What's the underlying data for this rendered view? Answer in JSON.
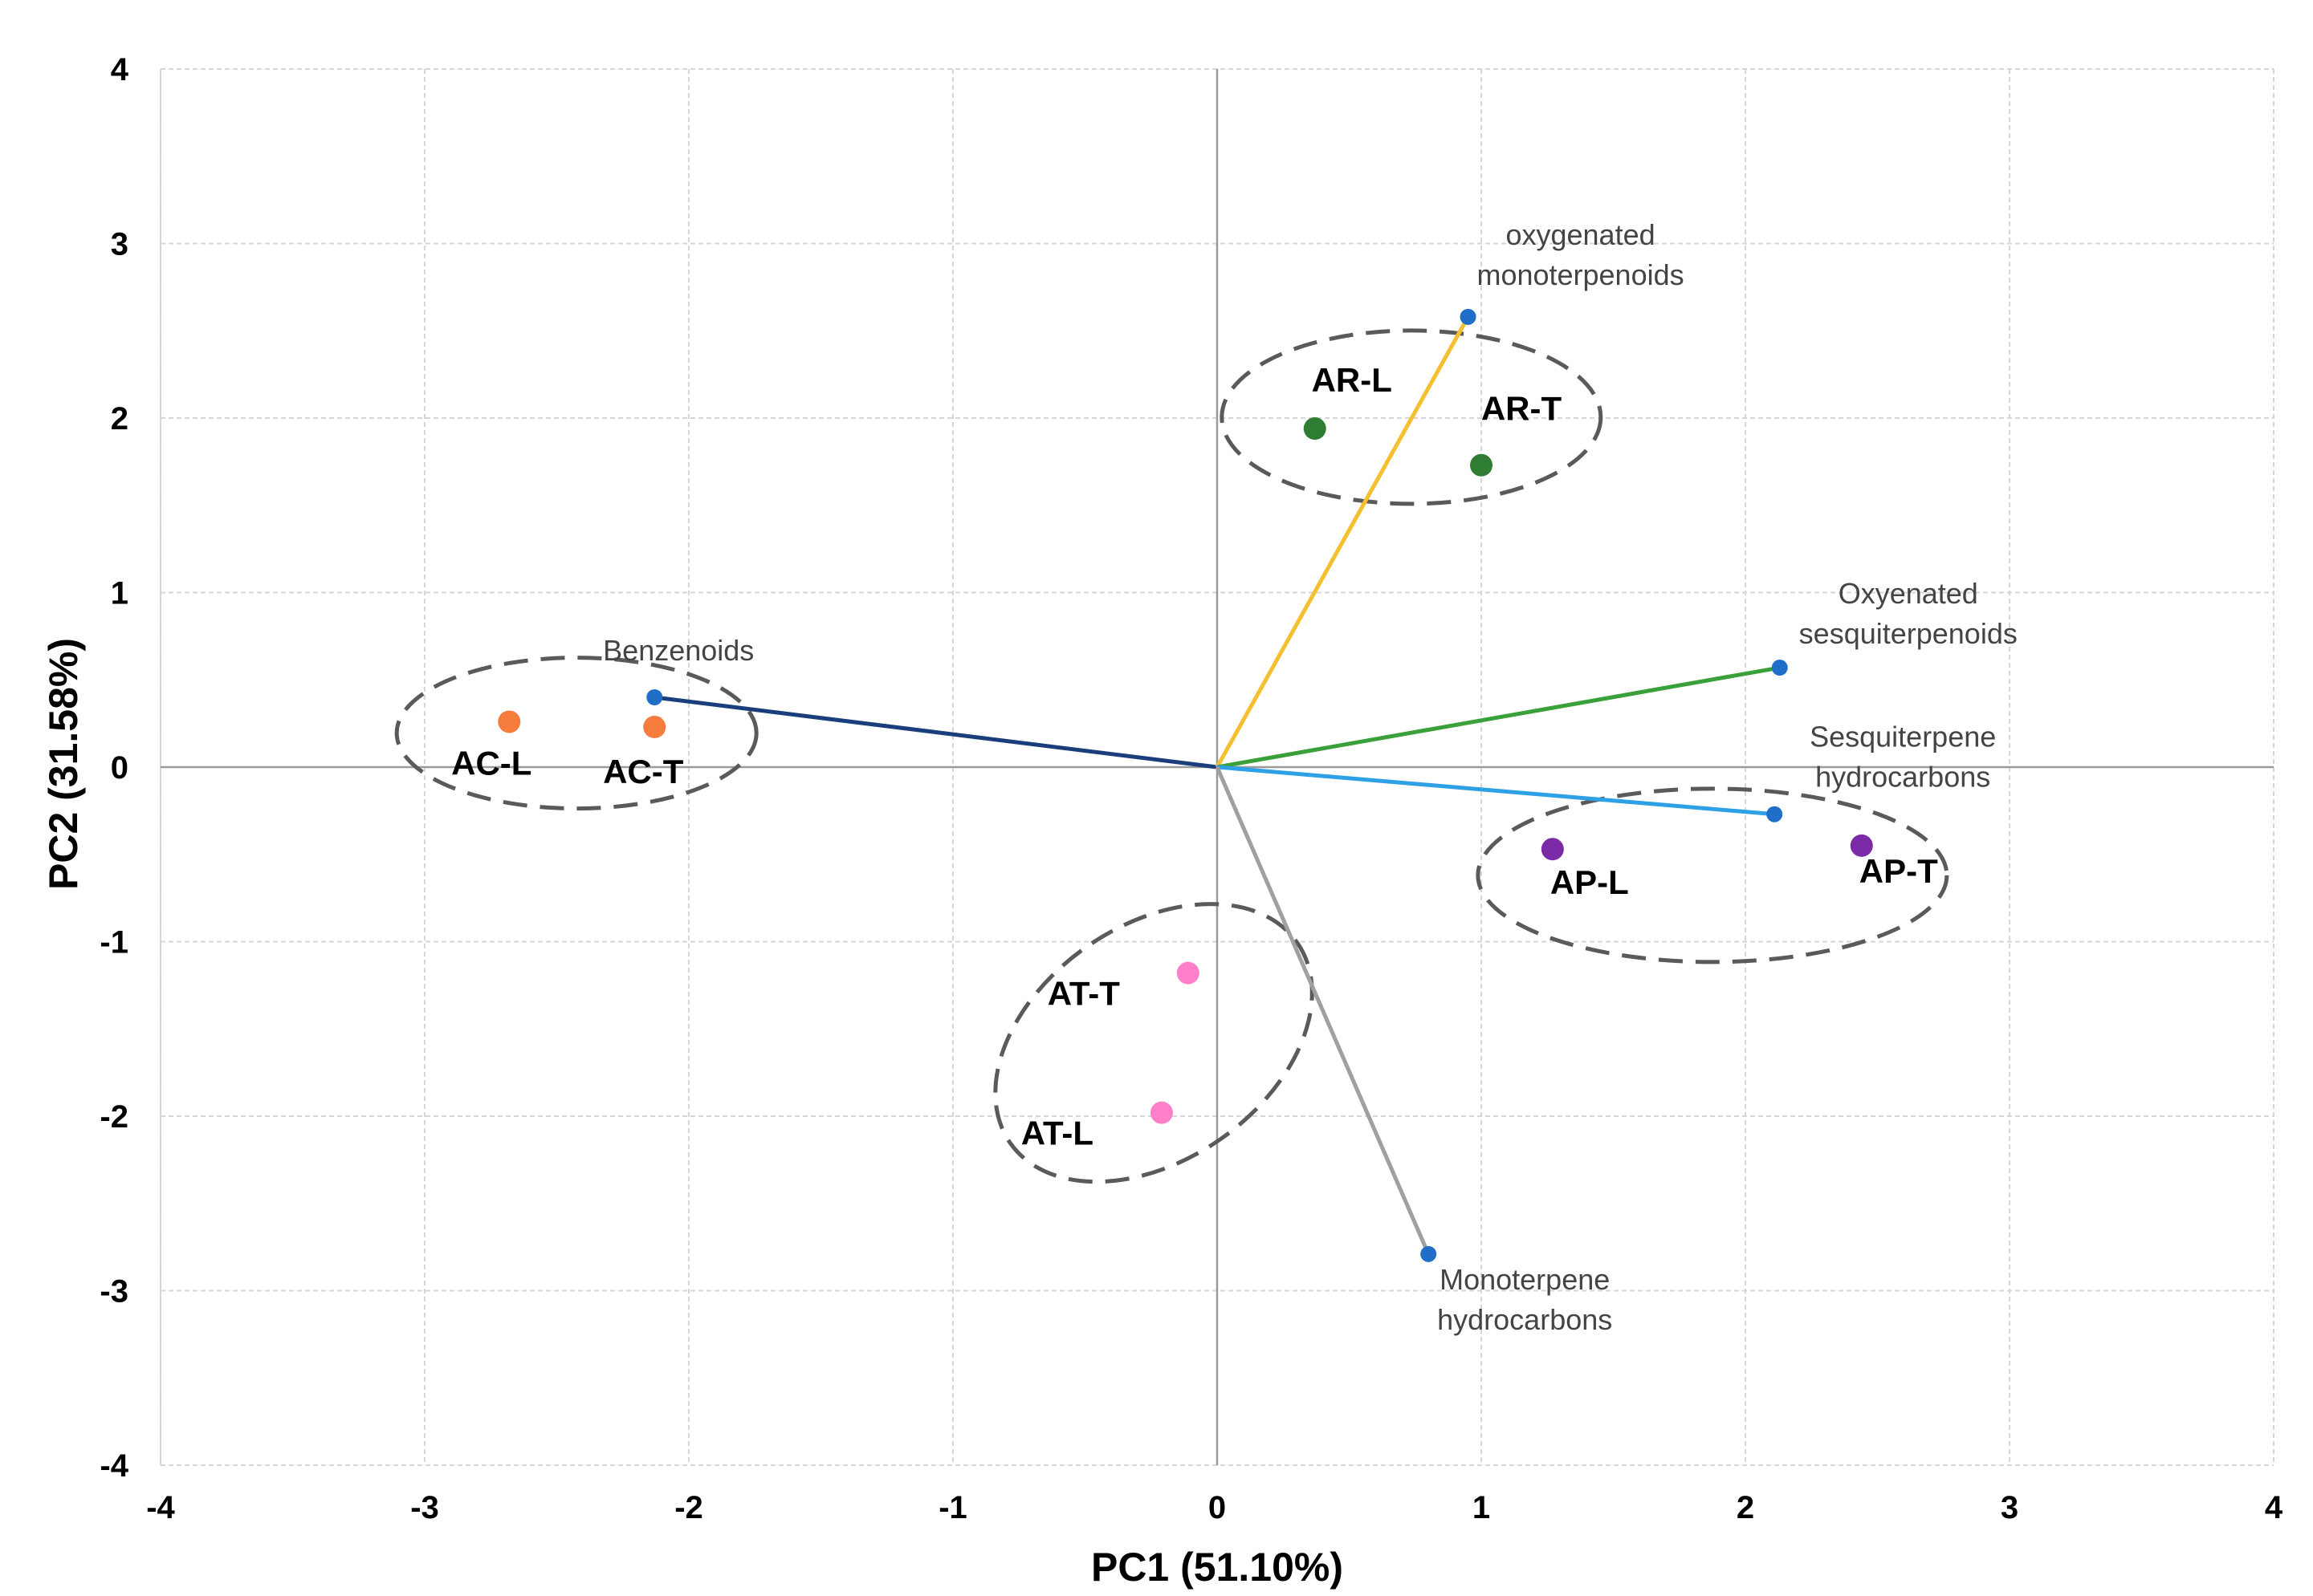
{
  "chart_data": {
    "type": "scatter",
    "title": "",
    "xlabel": "PC1 (51.10%)",
    "ylabel": "PC2 (31.58%)",
    "xlim": [
      -4,
      4
    ],
    "ylim": [
      -4,
      4
    ],
    "grid": true,
    "x_ticks": [
      -4,
      -3,
      -2,
      -1,
      0,
      1,
      2,
      3,
      4
    ],
    "y_ticks": [
      -4,
      -3,
      -2,
      -1,
      0,
      1,
      2,
      3,
      4
    ],
    "samples": [
      {
        "label": "AC-L",
        "x": -2.68,
        "y": 0.26,
        "color": "#f57c3c"
      },
      {
        "label": "AC-T",
        "x": -2.13,
        "y": 0.23,
        "color": "#f57c3c"
      },
      {
        "label": "AR-L",
        "x": 0.37,
        "y": 1.94,
        "color": "#2e7d32"
      },
      {
        "label": "AR-T",
        "x": 1.0,
        "y": 1.73,
        "color": "#2e7d32"
      },
      {
        "label": "AP-L",
        "x": 1.27,
        "y": -0.47,
        "color": "#7b2aa8"
      },
      {
        "label": "AP-T",
        "x": 2.44,
        "y": -0.45,
        "color": "#7b2aa8"
      },
      {
        "label": "AT-T",
        "x": -0.11,
        "y": -1.18,
        "color": "#ff80c8"
      },
      {
        "label": "AT-L",
        "x": -0.21,
        "y": -1.98,
        "color": "#ff80c8"
      }
    ],
    "vectors": [
      {
        "label": "Benzenoids",
        "x": -2.13,
        "y": 0.4,
        "color": "#1a3d7c"
      },
      {
        "label": "oxygenated monoterpenoids",
        "x": 0.95,
        "y": 2.58,
        "color": "#f5c030"
      },
      {
        "label": "Oxyenated sesquiterpenoids",
        "x": 2.13,
        "y": 0.57,
        "color": "#3aa03a"
      },
      {
        "label": "Sesquiterpene hydrocarbons",
        "x": 2.11,
        "y": -0.27,
        "color": "#2ea0e6"
      },
      {
        "label": "Monoterpene hydrocarbons",
        "x": 0.8,
        "y": -2.79,
        "color": "#a0a0a0"
      }
    ],
    "vector_endpoint_color": "#1f6fc8",
    "groups": [
      {
        "name": "AC",
        "members": [
          "AC-L",
          "AC-T"
        ]
      },
      {
        "name": "AR",
        "members": [
          "AR-L",
          "AR-T"
        ]
      },
      {
        "name": "AP",
        "members": [
          "AP-L",
          "AP-T"
        ]
      },
      {
        "name": "AT",
        "members": [
          "AT-T",
          "AT-L"
        ]
      }
    ]
  }
}
